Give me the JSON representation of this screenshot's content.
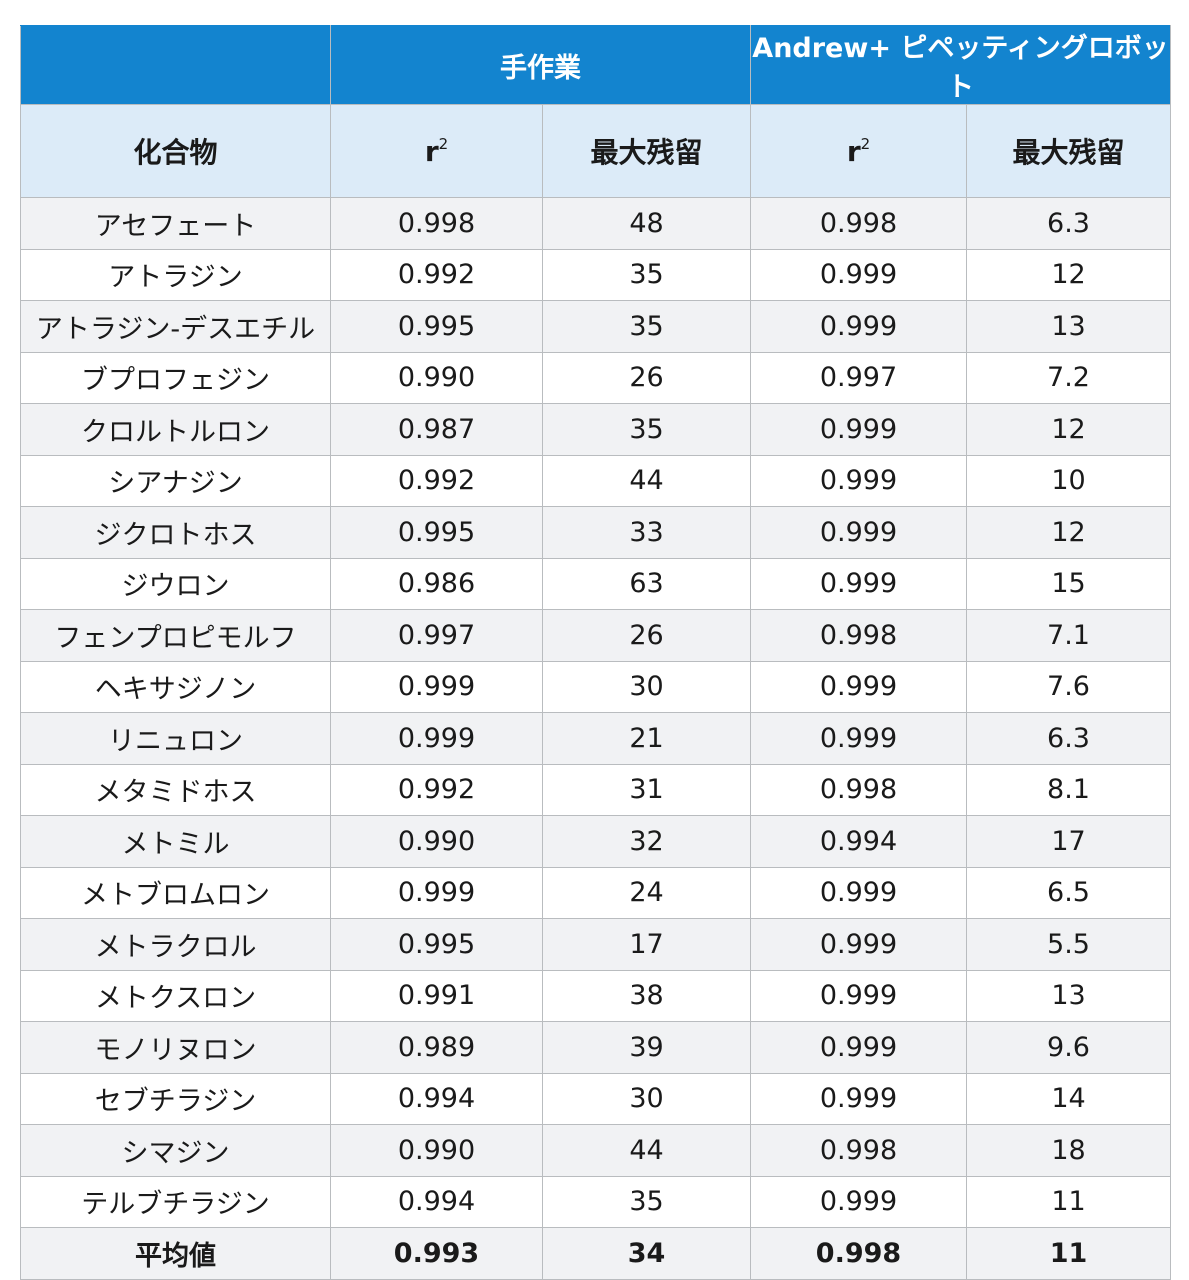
{
  "header": {
    "group_manual": "手作業",
    "group_robot": "Andrew+ ピペッティングロボット",
    "col_compound": "化合物",
    "col_r": "r",
    "col_r_sup": "2",
    "col_max_residual": "最大残留"
  },
  "rows": [
    {
      "compound": "アセフェート",
      "manual_r2": "0.998",
      "manual_max": "48",
      "robot_r2": "0.998",
      "robot_max": "6.3"
    },
    {
      "compound": "アトラジン",
      "manual_r2": "0.992",
      "manual_max": "35",
      "robot_r2": "0.999",
      "robot_max": "12"
    },
    {
      "compound": "アトラジン-デスエチル",
      "manual_r2": "0.995",
      "manual_max": "35",
      "robot_r2": "0.999",
      "robot_max": "13"
    },
    {
      "compound": "ブプロフェジン",
      "manual_r2": "0.990",
      "manual_max": "26",
      "robot_r2": "0.997",
      "robot_max": "7.2"
    },
    {
      "compound": "クロルトルロン",
      "manual_r2": "0.987",
      "manual_max": "35",
      "robot_r2": "0.999",
      "robot_max": "12"
    },
    {
      "compound": "シアナジン",
      "manual_r2": "0.992",
      "manual_max": "44",
      "robot_r2": "0.999",
      "robot_max": "10"
    },
    {
      "compound": "ジクロトホス",
      "manual_r2": "0.995",
      "manual_max": "33",
      "robot_r2": "0.999",
      "robot_max": "12"
    },
    {
      "compound": "ジウロン",
      "manual_r2": "0.986",
      "manual_max": "63",
      "robot_r2": "0.999",
      "robot_max": "15"
    },
    {
      "compound": "フェンプロピモルフ",
      "manual_r2": "0.997",
      "manual_max": "26",
      "robot_r2": "0.998",
      "robot_max": "7.1"
    },
    {
      "compound": "ヘキサジノン",
      "manual_r2": "0.999",
      "manual_max": "30",
      "robot_r2": "0.999",
      "robot_max": "7.6"
    },
    {
      "compound": "リニュロン",
      "manual_r2": "0.999",
      "manual_max": "21",
      "robot_r2": "0.999",
      "robot_max": "6.3"
    },
    {
      "compound": "メタミドホス",
      "manual_r2": "0.992",
      "manual_max": "31",
      "robot_r2": "0.998",
      "robot_max": "8.1"
    },
    {
      "compound": "メトミル",
      "manual_r2": "0.990",
      "manual_max": "32",
      "robot_r2": "0.994",
      "robot_max": "17"
    },
    {
      "compound": "メトブロムロン",
      "manual_r2": "0.999",
      "manual_max": "24",
      "robot_r2": "0.999",
      "robot_max": "6.5"
    },
    {
      "compound": "メトラクロル",
      "manual_r2": "0.995",
      "manual_max": "17",
      "robot_r2": "0.999",
      "robot_max": "5.5"
    },
    {
      "compound": "メトクスロン",
      "manual_r2": "0.991",
      "manual_max": "38",
      "robot_r2": "0.999",
      "robot_max": "13"
    },
    {
      "compound": "モノリヌロン",
      "manual_r2": "0.989",
      "manual_max": "39",
      "robot_r2": "0.999",
      "robot_max": "9.6"
    },
    {
      "compound": "セブチラジン",
      "manual_r2": "0.994",
      "manual_max": "30",
      "robot_r2": "0.999",
      "robot_max": "14"
    },
    {
      "compound": "シマジン",
      "manual_r2": "0.990",
      "manual_max": "44",
      "robot_r2": "0.998",
      "robot_max": "18"
    },
    {
      "compound": "テルブチラジン",
      "manual_r2": "0.994",
      "manual_max": "35",
      "robot_r2": "0.999",
      "robot_max": "11"
    }
  ],
  "average": {
    "label": "平均値",
    "manual_r2": "0.993",
    "manual_max": "34",
    "robot_r2": "0.998",
    "robot_max": "11"
  },
  "colors": {
    "header_blue": "#1384cf",
    "subheader_light_blue": "#dcebf8",
    "row_stripe": "#f1f2f4",
    "border_gray": "#b9bcbf"
  }
}
